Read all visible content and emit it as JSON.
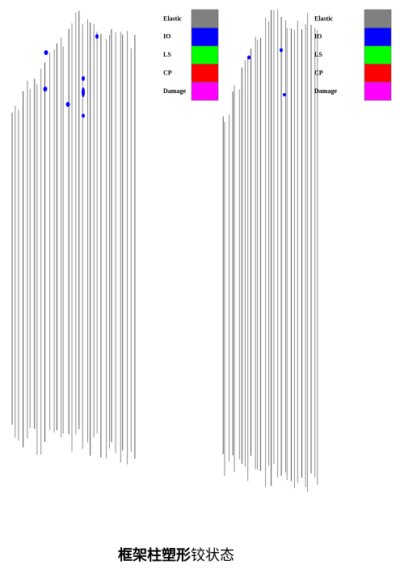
{
  "legends": [
    {
      "items": [
        {
          "label": "Elastic",
          "color": "#808080"
        },
        {
          "label": "IO",
          "color": "#0000ff"
        },
        {
          "label": "LS",
          "color": "#00ff00"
        },
        {
          "label": "CP",
          "color": "#ff0000"
        },
        {
          "label": "Damage",
          "color": "#ff00ff"
        }
      ]
    },
    {
      "items": [
        {
          "label": "Elastic",
          "color": "#808080"
        },
        {
          "label": "IO",
          "color": "#0000ff"
        },
        {
          "label": "LS",
          "color": "#00ff00"
        },
        {
          "label": "CP",
          "color": "#ff0000"
        },
        {
          "label": "Damage",
          "color": "#ff00ff"
        }
      ]
    }
  ],
  "caption": {
    "bold": "框架柱塑形",
    "normal": "铰状态"
  }
}
